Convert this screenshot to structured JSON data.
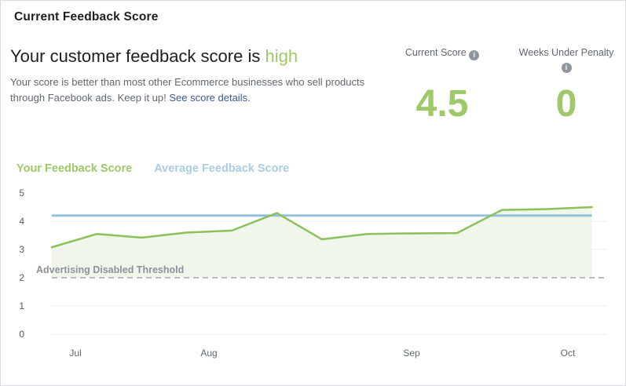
{
  "page": {
    "title": "Current Feedback Score"
  },
  "summary": {
    "heading_prefix": "Your customer feedback score is ",
    "heading_status": "high",
    "body_text": "Your score is better than most other Ecommerce businesses who sell products through Facebook ads. Keep it up! ",
    "link_text": "See score details",
    "body_suffix": "."
  },
  "stats": {
    "current_score": {
      "label": "Current Score",
      "value": "4.5",
      "info_icon": "info-icon"
    },
    "weeks_under_penalty": {
      "label": "Weeks Under Penalty",
      "value": "0",
      "info_icon": "info-icon"
    }
  },
  "colors": {
    "accent_green": "#9ec969",
    "line_green": "#8cc05a",
    "line_blue": "#92c3de",
    "legend_blue": "#a9cde2",
    "link_blue": "#385898",
    "threshold_gray": "#b9bcc2"
  },
  "chart_data": {
    "type": "line",
    "title": "",
    "xlabel": "",
    "ylabel": "",
    "ylim": [
      0,
      5
    ],
    "y_ticks": [
      0,
      1,
      2,
      3,
      4,
      5
    ],
    "x_tick_labels": [
      "Jul",
      "Aug",
      "Sep",
      "Oct"
    ],
    "grid": "horizontal",
    "legend_position": "top-left",
    "series": [
      {
        "name": "Your Feedback Score",
        "color": "#8cc05a",
        "fill": "rgba(140,192,90,0.13)",
        "values": [
          3.08,
          3.55,
          3.42,
          3.6,
          3.67,
          4.29,
          3.36,
          3.55,
          3.57,
          3.58,
          4.4,
          4.43,
          4.5
        ]
      },
      {
        "name": "Average Feedback Score",
        "color": "#92c3de",
        "constant_value": 4.2
      }
    ],
    "threshold": {
      "label": "Advertising Disabled Threshold",
      "value": 2
    }
  }
}
